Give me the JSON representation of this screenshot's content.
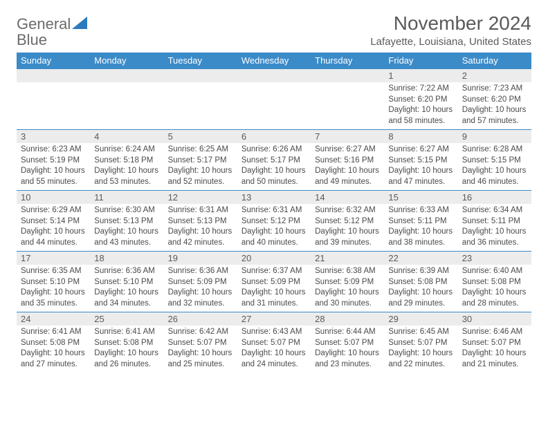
{
  "logo": {
    "text_general": "General",
    "text_blue": "Blue"
  },
  "header": {
    "title": "November 2024",
    "location": "Lafayette, Louisiana, United States"
  },
  "colors": {
    "header_bg": "#3b8bc9",
    "header_text": "#ffffff",
    "daynum_bg": "#ececec",
    "text": "#4a4a4a",
    "title_text": "#5a5a5a",
    "logo_gray": "#6b6b6b",
    "logo_blue": "#2b7bbd",
    "row_border": "#3b8bc9",
    "background": "#ffffff"
  },
  "dayHeaders": [
    "Sunday",
    "Monday",
    "Tuesday",
    "Wednesday",
    "Thursday",
    "Friday",
    "Saturday"
  ],
  "weeks": [
    [
      null,
      null,
      null,
      null,
      null,
      {
        "n": "1",
        "sr": "Sunrise: 7:22 AM",
        "ss": "Sunset: 6:20 PM",
        "dl": "Daylight: 10 hours and 58 minutes."
      },
      {
        "n": "2",
        "sr": "Sunrise: 7:23 AM",
        "ss": "Sunset: 6:20 PM",
        "dl": "Daylight: 10 hours and 57 minutes."
      }
    ],
    [
      {
        "n": "3",
        "sr": "Sunrise: 6:23 AM",
        "ss": "Sunset: 5:19 PM",
        "dl": "Daylight: 10 hours and 55 minutes."
      },
      {
        "n": "4",
        "sr": "Sunrise: 6:24 AM",
        "ss": "Sunset: 5:18 PM",
        "dl": "Daylight: 10 hours and 53 minutes."
      },
      {
        "n": "5",
        "sr": "Sunrise: 6:25 AM",
        "ss": "Sunset: 5:17 PM",
        "dl": "Daylight: 10 hours and 52 minutes."
      },
      {
        "n": "6",
        "sr": "Sunrise: 6:26 AM",
        "ss": "Sunset: 5:17 PM",
        "dl": "Daylight: 10 hours and 50 minutes."
      },
      {
        "n": "7",
        "sr": "Sunrise: 6:27 AM",
        "ss": "Sunset: 5:16 PM",
        "dl": "Daylight: 10 hours and 49 minutes."
      },
      {
        "n": "8",
        "sr": "Sunrise: 6:27 AM",
        "ss": "Sunset: 5:15 PM",
        "dl": "Daylight: 10 hours and 47 minutes."
      },
      {
        "n": "9",
        "sr": "Sunrise: 6:28 AM",
        "ss": "Sunset: 5:15 PM",
        "dl": "Daylight: 10 hours and 46 minutes."
      }
    ],
    [
      {
        "n": "10",
        "sr": "Sunrise: 6:29 AM",
        "ss": "Sunset: 5:14 PM",
        "dl": "Daylight: 10 hours and 44 minutes."
      },
      {
        "n": "11",
        "sr": "Sunrise: 6:30 AM",
        "ss": "Sunset: 5:13 PM",
        "dl": "Daylight: 10 hours and 43 minutes."
      },
      {
        "n": "12",
        "sr": "Sunrise: 6:31 AM",
        "ss": "Sunset: 5:13 PM",
        "dl": "Daylight: 10 hours and 42 minutes."
      },
      {
        "n": "13",
        "sr": "Sunrise: 6:31 AM",
        "ss": "Sunset: 5:12 PM",
        "dl": "Daylight: 10 hours and 40 minutes."
      },
      {
        "n": "14",
        "sr": "Sunrise: 6:32 AM",
        "ss": "Sunset: 5:12 PM",
        "dl": "Daylight: 10 hours and 39 minutes."
      },
      {
        "n": "15",
        "sr": "Sunrise: 6:33 AM",
        "ss": "Sunset: 5:11 PM",
        "dl": "Daylight: 10 hours and 38 minutes."
      },
      {
        "n": "16",
        "sr": "Sunrise: 6:34 AM",
        "ss": "Sunset: 5:11 PM",
        "dl": "Daylight: 10 hours and 36 minutes."
      }
    ],
    [
      {
        "n": "17",
        "sr": "Sunrise: 6:35 AM",
        "ss": "Sunset: 5:10 PM",
        "dl": "Daylight: 10 hours and 35 minutes."
      },
      {
        "n": "18",
        "sr": "Sunrise: 6:36 AM",
        "ss": "Sunset: 5:10 PM",
        "dl": "Daylight: 10 hours and 34 minutes."
      },
      {
        "n": "19",
        "sr": "Sunrise: 6:36 AM",
        "ss": "Sunset: 5:09 PM",
        "dl": "Daylight: 10 hours and 32 minutes."
      },
      {
        "n": "20",
        "sr": "Sunrise: 6:37 AM",
        "ss": "Sunset: 5:09 PM",
        "dl": "Daylight: 10 hours and 31 minutes."
      },
      {
        "n": "21",
        "sr": "Sunrise: 6:38 AM",
        "ss": "Sunset: 5:09 PM",
        "dl": "Daylight: 10 hours and 30 minutes."
      },
      {
        "n": "22",
        "sr": "Sunrise: 6:39 AM",
        "ss": "Sunset: 5:08 PM",
        "dl": "Daylight: 10 hours and 29 minutes."
      },
      {
        "n": "23",
        "sr": "Sunrise: 6:40 AM",
        "ss": "Sunset: 5:08 PM",
        "dl": "Daylight: 10 hours and 28 minutes."
      }
    ],
    [
      {
        "n": "24",
        "sr": "Sunrise: 6:41 AM",
        "ss": "Sunset: 5:08 PM",
        "dl": "Daylight: 10 hours and 27 minutes."
      },
      {
        "n": "25",
        "sr": "Sunrise: 6:41 AM",
        "ss": "Sunset: 5:08 PM",
        "dl": "Daylight: 10 hours and 26 minutes."
      },
      {
        "n": "26",
        "sr": "Sunrise: 6:42 AM",
        "ss": "Sunset: 5:07 PM",
        "dl": "Daylight: 10 hours and 25 minutes."
      },
      {
        "n": "27",
        "sr": "Sunrise: 6:43 AM",
        "ss": "Sunset: 5:07 PM",
        "dl": "Daylight: 10 hours and 24 minutes."
      },
      {
        "n": "28",
        "sr": "Sunrise: 6:44 AM",
        "ss": "Sunset: 5:07 PM",
        "dl": "Daylight: 10 hours and 23 minutes."
      },
      {
        "n": "29",
        "sr": "Sunrise: 6:45 AM",
        "ss": "Sunset: 5:07 PM",
        "dl": "Daylight: 10 hours and 22 minutes."
      },
      {
        "n": "30",
        "sr": "Sunrise: 6:46 AM",
        "ss": "Sunset: 5:07 PM",
        "dl": "Daylight: 10 hours and 21 minutes."
      }
    ]
  ]
}
